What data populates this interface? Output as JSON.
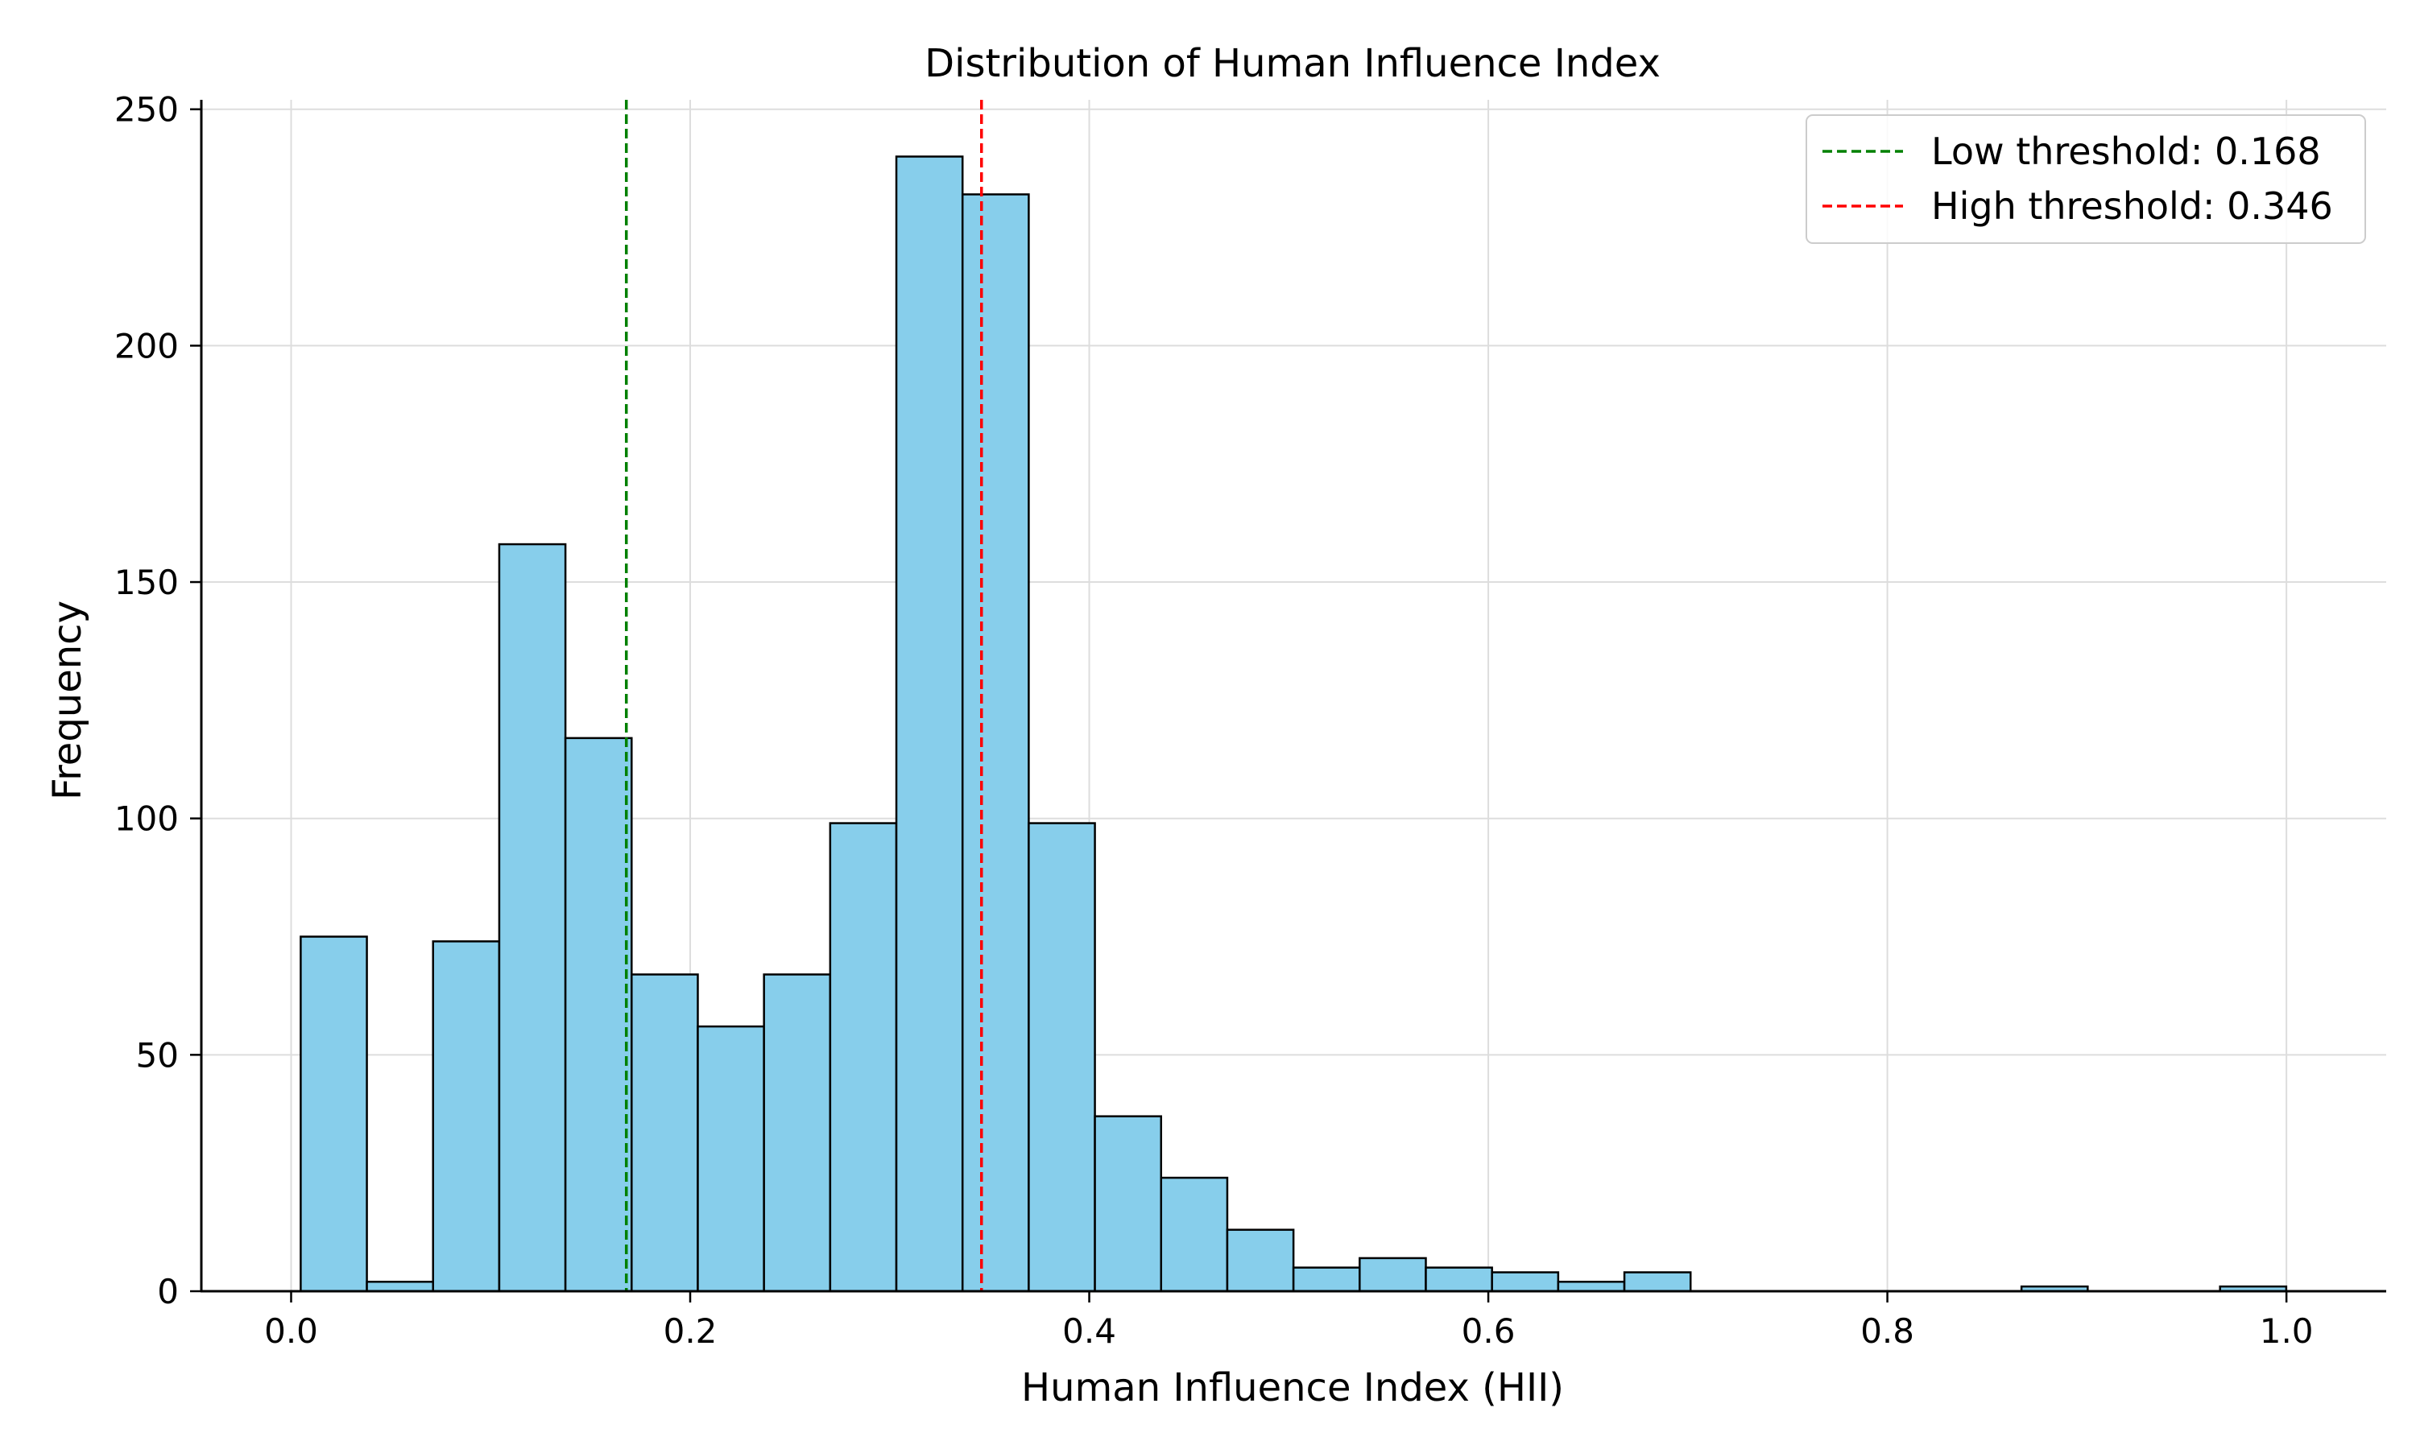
{
  "chart_data": {
    "type": "bar",
    "title": "Distribution of Human Influence Index",
    "xlabel": "Human Influence Index (HII)",
    "ylabel": "Frequency",
    "xlim": [
      -0.045,
      1.05
    ],
    "ylim": [
      0,
      252
    ],
    "xticks": [
      0.0,
      0.2,
      0.4,
      0.6,
      0.8,
      1.0
    ],
    "xtick_labels": [
      "0.0",
      "0.2",
      "0.4",
      "0.6",
      "0.8",
      "1.0"
    ],
    "yticks": [
      0,
      50,
      100,
      150,
      200,
      250
    ],
    "ytick_labels": [
      "0",
      "50",
      "100",
      "150",
      "200",
      "250"
    ],
    "grid": true,
    "bin_start": 0.0048,
    "bin_width": 0.03317,
    "counts": [
      75,
      2,
      74,
      158,
      117,
      67,
      56,
      67,
      99,
      240,
      232,
      99,
      37,
      24,
      13,
      5,
      7,
      5,
      4,
      2,
      4,
      0,
      0,
      0,
      0,
      0,
      1,
      0,
      0,
      1
    ],
    "bar_color": "#87CEEB",
    "bar_edge_color": "#000000",
    "thresholds": [
      {
        "name": "Low threshold: 0.168",
        "value": 0.168,
        "color": "#008000"
      },
      {
        "name": "High threshold: 0.346",
        "value": 0.346,
        "color": "#FF0000"
      }
    ],
    "legend_position": "top-right"
  }
}
